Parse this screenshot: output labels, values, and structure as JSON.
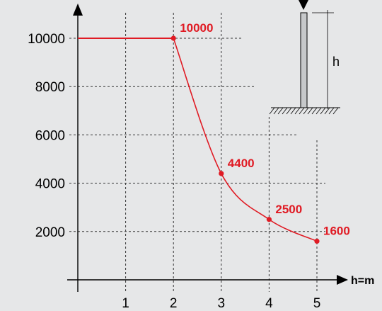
{
  "chart_data": {
    "type": "line",
    "xlabel": "h=m",
    "ylabel": "",
    "x_ticks": [
      "1",
      "2",
      "3",
      "4",
      "5"
    ],
    "y_ticks": [
      "2000",
      "4000",
      "6000",
      "8000",
      "10000"
    ],
    "xlim": [
      0,
      5.5
    ],
    "ylim": [
      0,
      11300
    ],
    "grid": true,
    "series": [
      {
        "color": "#e01b24",
        "points": [
          [
            0,
            10000
          ],
          [
            2,
            10000
          ],
          [
            3,
            4400
          ],
          [
            4,
            2500
          ],
          [
            5,
            1600
          ]
        ]
      }
    ],
    "data_labels": [
      {
        "x": 2,
        "y": 10000,
        "text": "10000"
      },
      {
        "x": 3,
        "y": 4400,
        "text": "4400"
      },
      {
        "x": 4,
        "y": 2500,
        "text": "2500"
      },
      {
        "x": 5,
        "y": 1600,
        "text": "1600"
      }
    ]
  },
  "column_sketch": {
    "height_label": "h"
  }
}
